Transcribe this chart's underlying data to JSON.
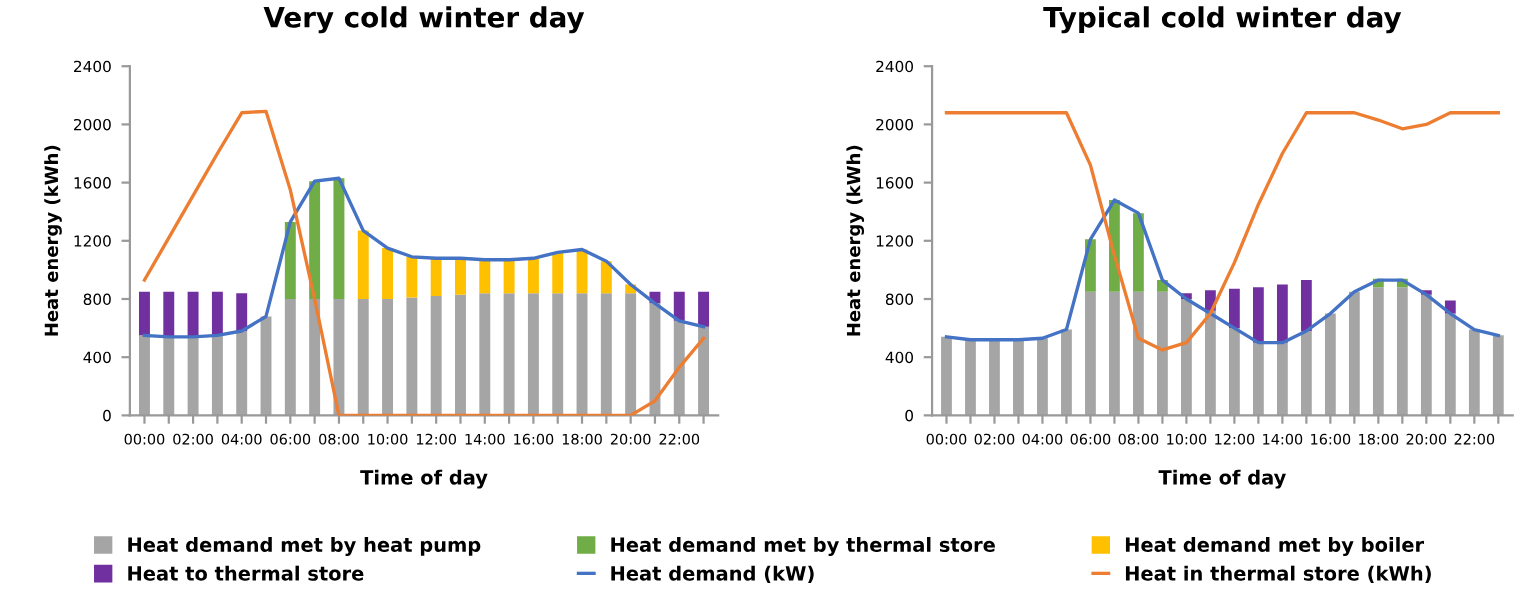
{
  "chart_data": [
    {
      "type": "bar",
      "stacked": true,
      "title": "Very cold winter day",
      "xlabel": "Time of day",
      "ylabel": "Heat energy (kWh)",
      "categories": [
        "00:00",
        null,
        "02:00",
        null,
        "04:00",
        null,
        "06:00",
        null,
        "08:00",
        null,
        "10:00",
        null,
        "12:00",
        null,
        "14:00",
        null,
        "16:00",
        null,
        "18:00",
        null,
        "20:00",
        null,
        "22:00",
        null
      ],
      "ylim": [
        0,
        2400
      ],
      "yticks": [
        0,
        400,
        800,
        1200,
        1600,
        2000,
        2400
      ],
      "grid": false,
      "legend": "bottom",
      "series": [
        {
          "name": "Heat demand met by heat pump",
          "color": "#a5a5a5",
          "values": [
            550,
            540,
            540,
            550,
            580,
            680,
            800,
            800,
            800,
            800,
            800,
            810,
            820,
            830,
            840,
            840,
            840,
            840,
            840,
            840,
            840,
            770,
            650,
            610
          ]
        },
        {
          "name": "Heat demand met by thermal store",
          "color": "#70ad47",
          "values": [
            null,
            null,
            null,
            null,
            null,
            null,
            530,
            810,
            830,
            null,
            null,
            null,
            null,
            null,
            null,
            null,
            null,
            null,
            null,
            null,
            null,
            null,
            null,
            null
          ]
        },
        {
          "name": "Heat demand met by boiler",
          "color": "#ffc000",
          "values": [
            null,
            null,
            null,
            null,
            null,
            null,
            null,
            null,
            null,
            470,
            350,
            280,
            260,
            250,
            230,
            230,
            240,
            280,
            300,
            220,
            60,
            null,
            null,
            null
          ]
        },
        {
          "name": "Heat to thermal store",
          "color": "#7030a0",
          "values": [
            300,
            310,
            310,
            300,
            260,
            null,
            null,
            null,
            null,
            null,
            null,
            null,
            null,
            null,
            null,
            null,
            null,
            null,
            null,
            null,
            null,
            80,
            200,
            240
          ]
        },
        {
          "name": "Heat demand (kW)",
          "type": "line",
          "color": "#4472c4",
          "values": [
            550,
            540,
            540,
            550,
            580,
            680,
            1330,
            1610,
            1630,
            1270,
            1150,
            1090,
            1080,
            1080,
            1070,
            1070,
            1080,
            1120,
            1140,
            1060,
            900,
            770,
            650,
            610
          ]
        },
        {
          "name": "Heat in thermal store (kWh)",
          "type": "line",
          "color": "#ed7d31",
          "values": [
            930,
            1220,
            1510,
            1800,
            2080,
            2090,
            1550,
            800,
            0,
            0,
            0,
            0,
            0,
            0,
            0,
            0,
            0,
            0,
            0,
            0,
            0,
            100,
            330,
            530
          ]
        }
      ]
    },
    {
      "type": "bar",
      "stacked": true,
      "title": "Typical cold winter day",
      "xlabel": "Time of day",
      "ylabel": "Heat energy (kWh)",
      "categories": [
        "00:00",
        null,
        "02:00",
        null,
        "04:00",
        null,
        "06:00",
        null,
        "08:00",
        null,
        "10:00",
        null,
        "12:00",
        null,
        "14:00",
        null,
        "16:00",
        null,
        "18:00",
        null,
        "20:00",
        null,
        "22:00",
        null
      ],
      "ylim": [
        0,
        2400
      ],
      "yticks": [
        0,
        400,
        800,
        1200,
        1600,
        2000,
        2400
      ],
      "grid": false,
      "series": [
        {
          "color": "#a5a5a5",
          "values": [
            540,
            520,
            520,
            520,
            530,
            590,
            850,
            850,
            850,
            850,
            800,
            720,
            600,
            500,
            500,
            580,
            700,
            850,
            880,
            880,
            830,
            700,
            590,
            550
          ]
        },
        {
          "color": "#70ad47",
          "values": [
            null,
            null,
            null,
            null,
            null,
            null,
            360,
            630,
            540,
            80,
            null,
            null,
            null,
            null,
            null,
            null,
            null,
            null,
            60,
            60,
            null,
            null,
            null,
            null
          ]
        },
        {
          "color": "#ffc000",
          "values": [
            null,
            null,
            null,
            null,
            null,
            null,
            null,
            null,
            null,
            null,
            null,
            null,
            null,
            null,
            null,
            null,
            null,
            null,
            null,
            null,
            null,
            null,
            null,
            null
          ]
        },
        {
          "color": "#7030a0",
          "values": [
            null,
            null,
            null,
            null,
            null,
            null,
            null,
            null,
            null,
            null,
            40,
            140,
            270,
            380,
            400,
            350,
            null,
            null,
            null,
            null,
            30,
            90,
            null,
            null
          ]
        },
        {
          "type": "line",
          "color": "#4472c4",
          "values": [
            540,
            520,
            520,
            520,
            530,
            590,
            1210,
            1480,
            1390,
            930,
            800,
            700,
            600,
            500,
            500,
            580,
            700,
            850,
            930,
            930,
            830,
            700,
            590,
            550
          ]
        },
        {
          "type": "line",
          "color": "#ed7d31",
          "values": [
            2080,
            2080,
            2080,
            2080,
            2080,
            2080,
            1720,
            1100,
            530,
            450,
            500,
            700,
            1050,
            1450,
            1800,
            2080,
            2080,
            2080,
            2030,
            1970,
            2000,
            2080,
            2080,
            2080
          ]
        }
      ]
    }
  ]
}
